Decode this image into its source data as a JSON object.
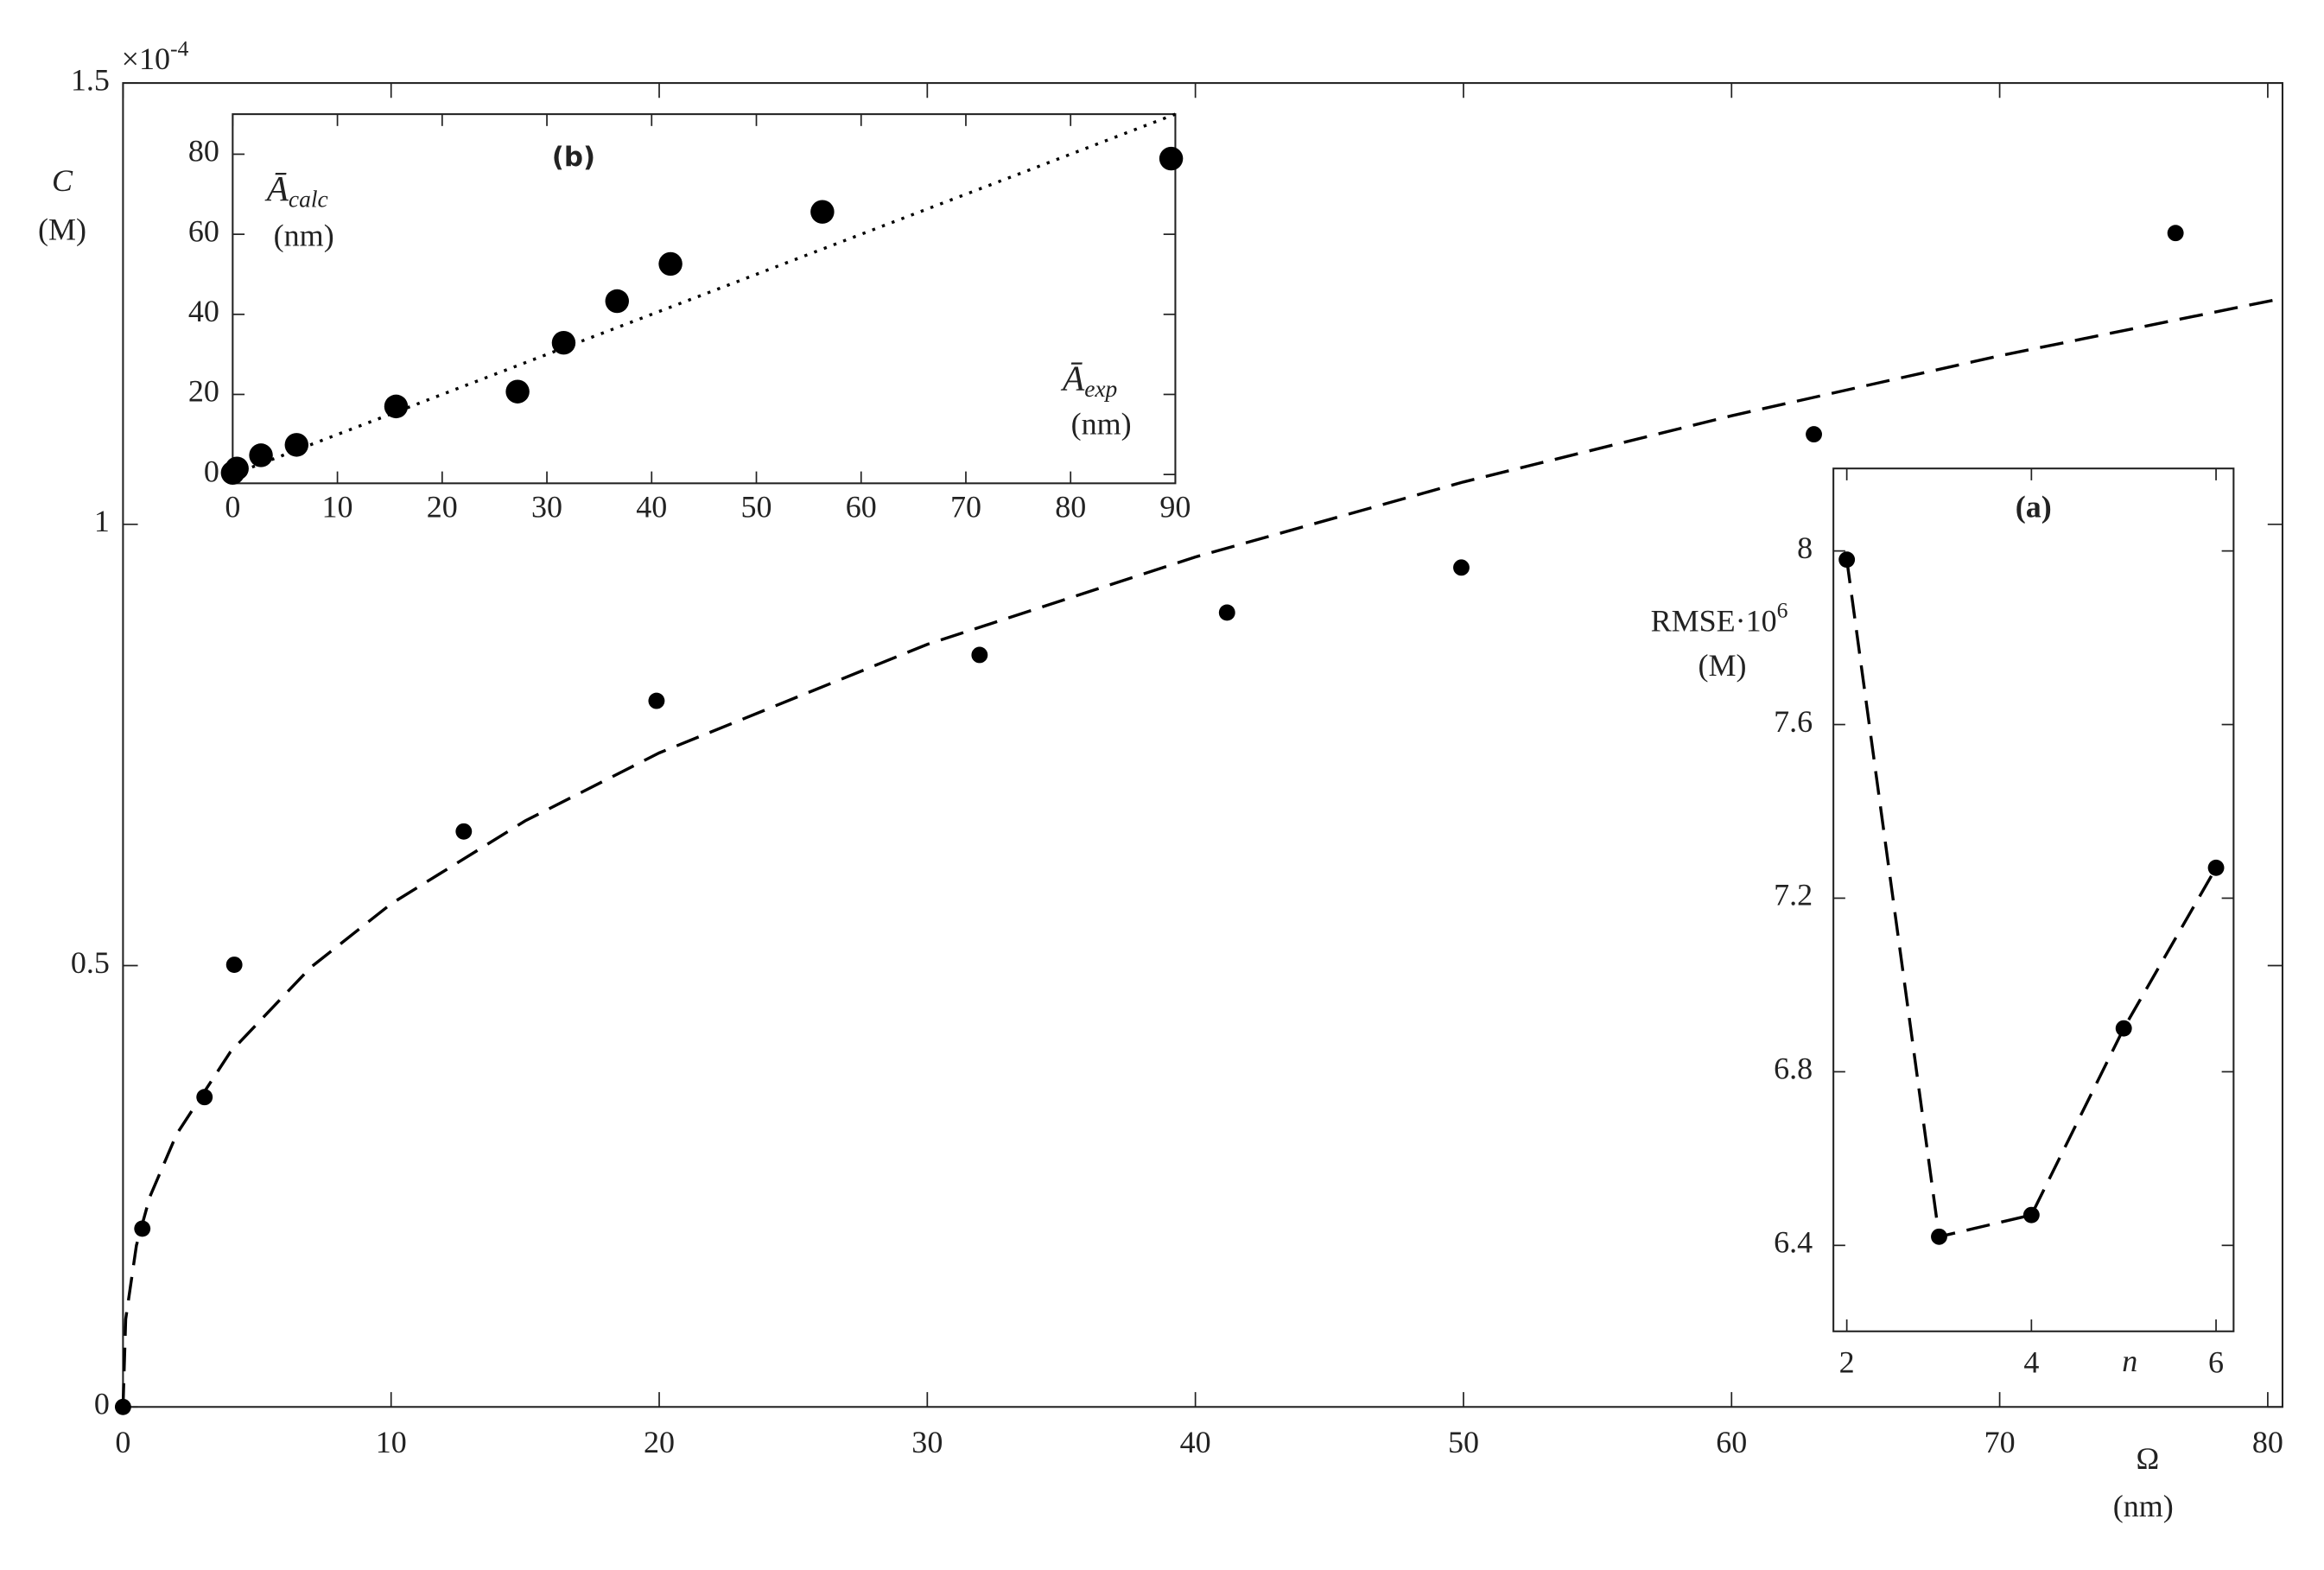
{
  "chart_data": [
    {
      "type": "scatter",
      "multiplier": "×10",
      "multiplier_exponent": "-4",
      "y_label": "C",
      "y_unit": "(M)",
      "x_label": "Ω",
      "x_unit": "(nm)",
      "xlim": [
        0,
        80.55
      ],
      "ylim": [
        0,
        1.5
      ],
      "xticks": [
        0,
        10,
        20,
        30,
        40,
        50,
        60,
        70,
        80
      ],
      "yticks": [
        0,
        0.5,
        1,
        1.5
      ],
      "series": [
        {
          "color": "#000000",
          "marker": "circle",
          "x": [
            0,
            0.72,
            3.04,
            4.15,
            12.71,
            19.9,
            31.95,
            41.18,
            49.92,
            63.07,
            76.56
          ],
          "values": [
            0,
            0.202,
            0.351,
            0.501,
            0.652,
            0.8,
            0.852,
            0.9,
            0.951,
            1.102,
            1.33
          ]
        },
        {
          "color": "#000000",
          "line_style": "dashed",
          "x": [
            0,
            0.1,
            0.5,
            1,
            2,
            4,
            7,
            10,
            15,
            20,
            30,
            40,
            50,
            60,
            70,
            80.55
          ],
          "values": [
            0,
            0.0995,
            0.183,
            0.238,
            0.309,
            0.402,
            0.498,
            0.57,
            0.664,
            0.741,
            0.864,
            0.963,
            1.048,
            1.123,
            1.191,
            1.256
          ]
        }
      ]
    },
    {
      "type": "scatter",
      "title": "(a)",
      "y_label": "RMSE·10",
      "y_label_exponent": "6",
      "y_unit": "(M)",
      "x_label": "n",
      "xlim": [
        1.855,
        6.19
      ],
      "ylim": [
        6.202,
        8.19
      ],
      "xticks": [
        2,
        4,
        6
      ],
      "yticks": [
        6.4,
        6.8,
        7.2,
        7.6,
        8
      ],
      "series": [
        {
          "color": "#000000",
          "marker": "circle",
          "line_style": "dashed",
          "x": [
            2,
            3,
            4,
            5,
            6
          ],
          "values": [
            7.98,
            6.42,
            6.47,
            6.9,
            7.27
          ]
        }
      ]
    },
    {
      "type": "scatter",
      "title": "(b)",
      "y_label": "Ā",
      "y_label_sub": "calc",
      "y_unit": "(nm)",
      "x_label": "Ā",
      "x_label_sub": "exp",
      "x_unit": "(nm)",
      "xlim": [
        0,
        90
      ],
      "ylim": [
        -2.2,
        90
      ],
      "xticks": [
        0,
        10,
        20,
        30,
        40,
        50,
        60,
        70,
        80,
        90
      ],
      "yticks": [
        0,
        20,
        40,
        60,
        80
      ],
      "series": [
        {
          "color": "#000000",
          "marker": "circle",
          "x": [
            0,
            0.4,
            2.7,
            6.1,
            15.6,
            27.2,
            31.6,
            36.7,
            41.8,
            56.3,
            89.6
          ],
          "values": [
            0.4,
            1.5,
            4.8,
            7.4,
            17,
            20.7,
            32.9,
            43.3,
            52.6,
            65.6,
            78.9
          ]
        },
        {
          "color": "#000000",
          "line_style": "dotted",
          "x": [
            0,
            90
          ],
          "values": [
            0,
            90
          ]
        }
      ]
    }
  ]
}
